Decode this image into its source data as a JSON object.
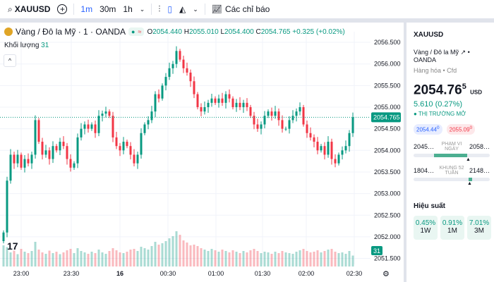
{
  "toolbar": {
    "symbol": "XAUUSD",
    "intervals": [
      "1m",
      "30m",
      "1h"
    ],
    "indicators_label": "Các chỉ báo"
  },
  "legend": {
    "title": "Vàng / Đô la Mỹ · 1 · OANDA",
    "o_label": "O",
    "o": "2054.440",
    "h_label": "H",
    "h": "2055.010",
    "l_label": "L",
    "l": "2054.400",
    "c_label": "C",
    "c": "2054.765",
    "change": "+0.325 (+0.02%)",
    "volume_label": "Khối lượng",
    "volume": "31"
  },
  "axis": {
    "price_ticks": [
      "2056.500",
      "2056.000",
      "2055.500",
      "2055.000",
      "2054.500",
      "2054.000",
      "2053.500",
      "2053.000",
      "2052.500",
      "2052.000",
      "2051.500"
    ],
    "time_ticks": [
      "23:00",
      "23:30",
      "16",
      "00:30",
      "01:00",
      "01:30",
      "02:00",
      "02:30"
    ],
    "last_price_label": "2054.765",
    "last_volume_label": "31"
  },
  "chart_data": {
    "type": "candlestick",
    "ylim": [
      2051.5,
      2056.5
    ],
    "last_price": 2054.765,
    "closes": [
      2052.1,
      2053.3,
      2053.9,
      2053.7,
      2053.9,
      2053.6,
      2053.8,
      2053.7,
      2053.9,
      2054.7,
      2054.2,
      2053.9,
      2054.0,
      2053.8,
      2054.1,
      2054.0,
      2054.2,
      2054.1,
      2053.8,
      2053.6,
      2053.7,
      2054.3,
      2054.5,
      2054.6,
      2054.5,
      2054.6,
      2054.4,
      2054.8,
      2054.85,
      2054.9,
      2054.8,
      2054.3,
      2054.1,
      2054.0,
      2054.2,
      2054.1,
      2053.9,
      2053.7,
      2053.9,
      2054.4,
      2054.6,
      2054.7,
      2054.9,
      2055.3,
      2055.2,
      2055.5,
      2055.7,
      2055.9,
      2056.0,
      2056.3,
      2056.1,
      2055.9,
      2055.8,
      2055.6,
      2055.3,
      2055.0,
      2054.9,
      2055.0,
      2055.1,
      2055.2,
      2055.1,
      2055.2,
      2055.1,
      2055.3,
      2055.2,
      2055.0,
      2055.1,
      2055.0,
      2055.1,
      2055.0,
      2054.8,
      2054.6,
      2054.5,
      2054.6,
      2054.8,
      2054.9,
      2054.8,
      2054.9,
      2054.7,
      2054.5,
      2054.5,
      2054.7,
      2054.8,
      2054.9,
      2055.0,
      2054.6,
      2054.4,
      2054.3,
      2054.2,
      2054.0,
      2054.1,
      2053.9,
      2054.2,
      2053.8,
      2053.7,
      2053.9,
      2054.0,
      2054.1,
      2054.4,
      2054.765
    ],
    "volumes": [
      60,
      55,
      40,
      45,
      35,
      50,
      42,
      38,
      44,
      70,
      48,
      40,
      36,
      45,
      38,
      42,
      35,
      40,
      46,
      50,
      38,
      52,
      44,
      40,
      36,
      42,
      38,
      48,
      40,
      36,
      44,
      52,
      46,
      40,
      38,
      42,
      48,
      50,
      44,
      56,
      52,
      48,
      58,
      70,
      62,
      66,
      72,
      80,
      86,
      100,
      90,
      74,
      68,
      60,
      62,
      58,
      52,
      48,
      44,
      50,
      46,
      42,
      48,
      44,
      40,
      46,
      42,
      38,
      44,
      40,
      46,
      50,
      44,
      38,
      42,
      40,
      36,
      42,
      38,
      44,
      40,
      38,
      36,
      42,
      46,
      50,
      44,
      40,
      42,
      46,
      40,
      44,
      48,
      50,
      42,
      38,
      40,
      36,
      44,
      31
    ]
  },
  "side": {
    "symbol": "XAUUSD",
    "name": "Vàng / Đô la Mỹ",
    "exchange": "OANDA",
    "category": "Hàng hóa • Cfd",
    "price": "2054.76",
    "price_sup": "5",
    "currency": "USD",
    "change": "5.610 (0.27%)",
    "market_status": "THỊ TRƯỜNG MỞ",
    "bid": "2054.44",
    "bid_sup": "0",
    "ask": "2055.09",
    "ask_sup": "0",
    "day_range": {
      "low": "2045…",
      "high": "2058…",
      "label": "PHẠM VI NGÀY"
    },
    "week52": {
      "low": "1804…",
      "high": "2148…",
      "label": "KHUNG 52 TUẦN"
    },
    "performance_title": "Hiệu suất",
    "performance": [
      {
        "value": "0.45%",
        "period": "1W"
      },
      {
        "value": "0.91%",
        "period": "1M"
      },
      {
        "value": "7.01%",
        "period": "3M"
      }
    ]
  },
  "colors": {
    "up": "#089981",
    "down": "#f23645",
    "accent": "#2962ff"
  }
}
